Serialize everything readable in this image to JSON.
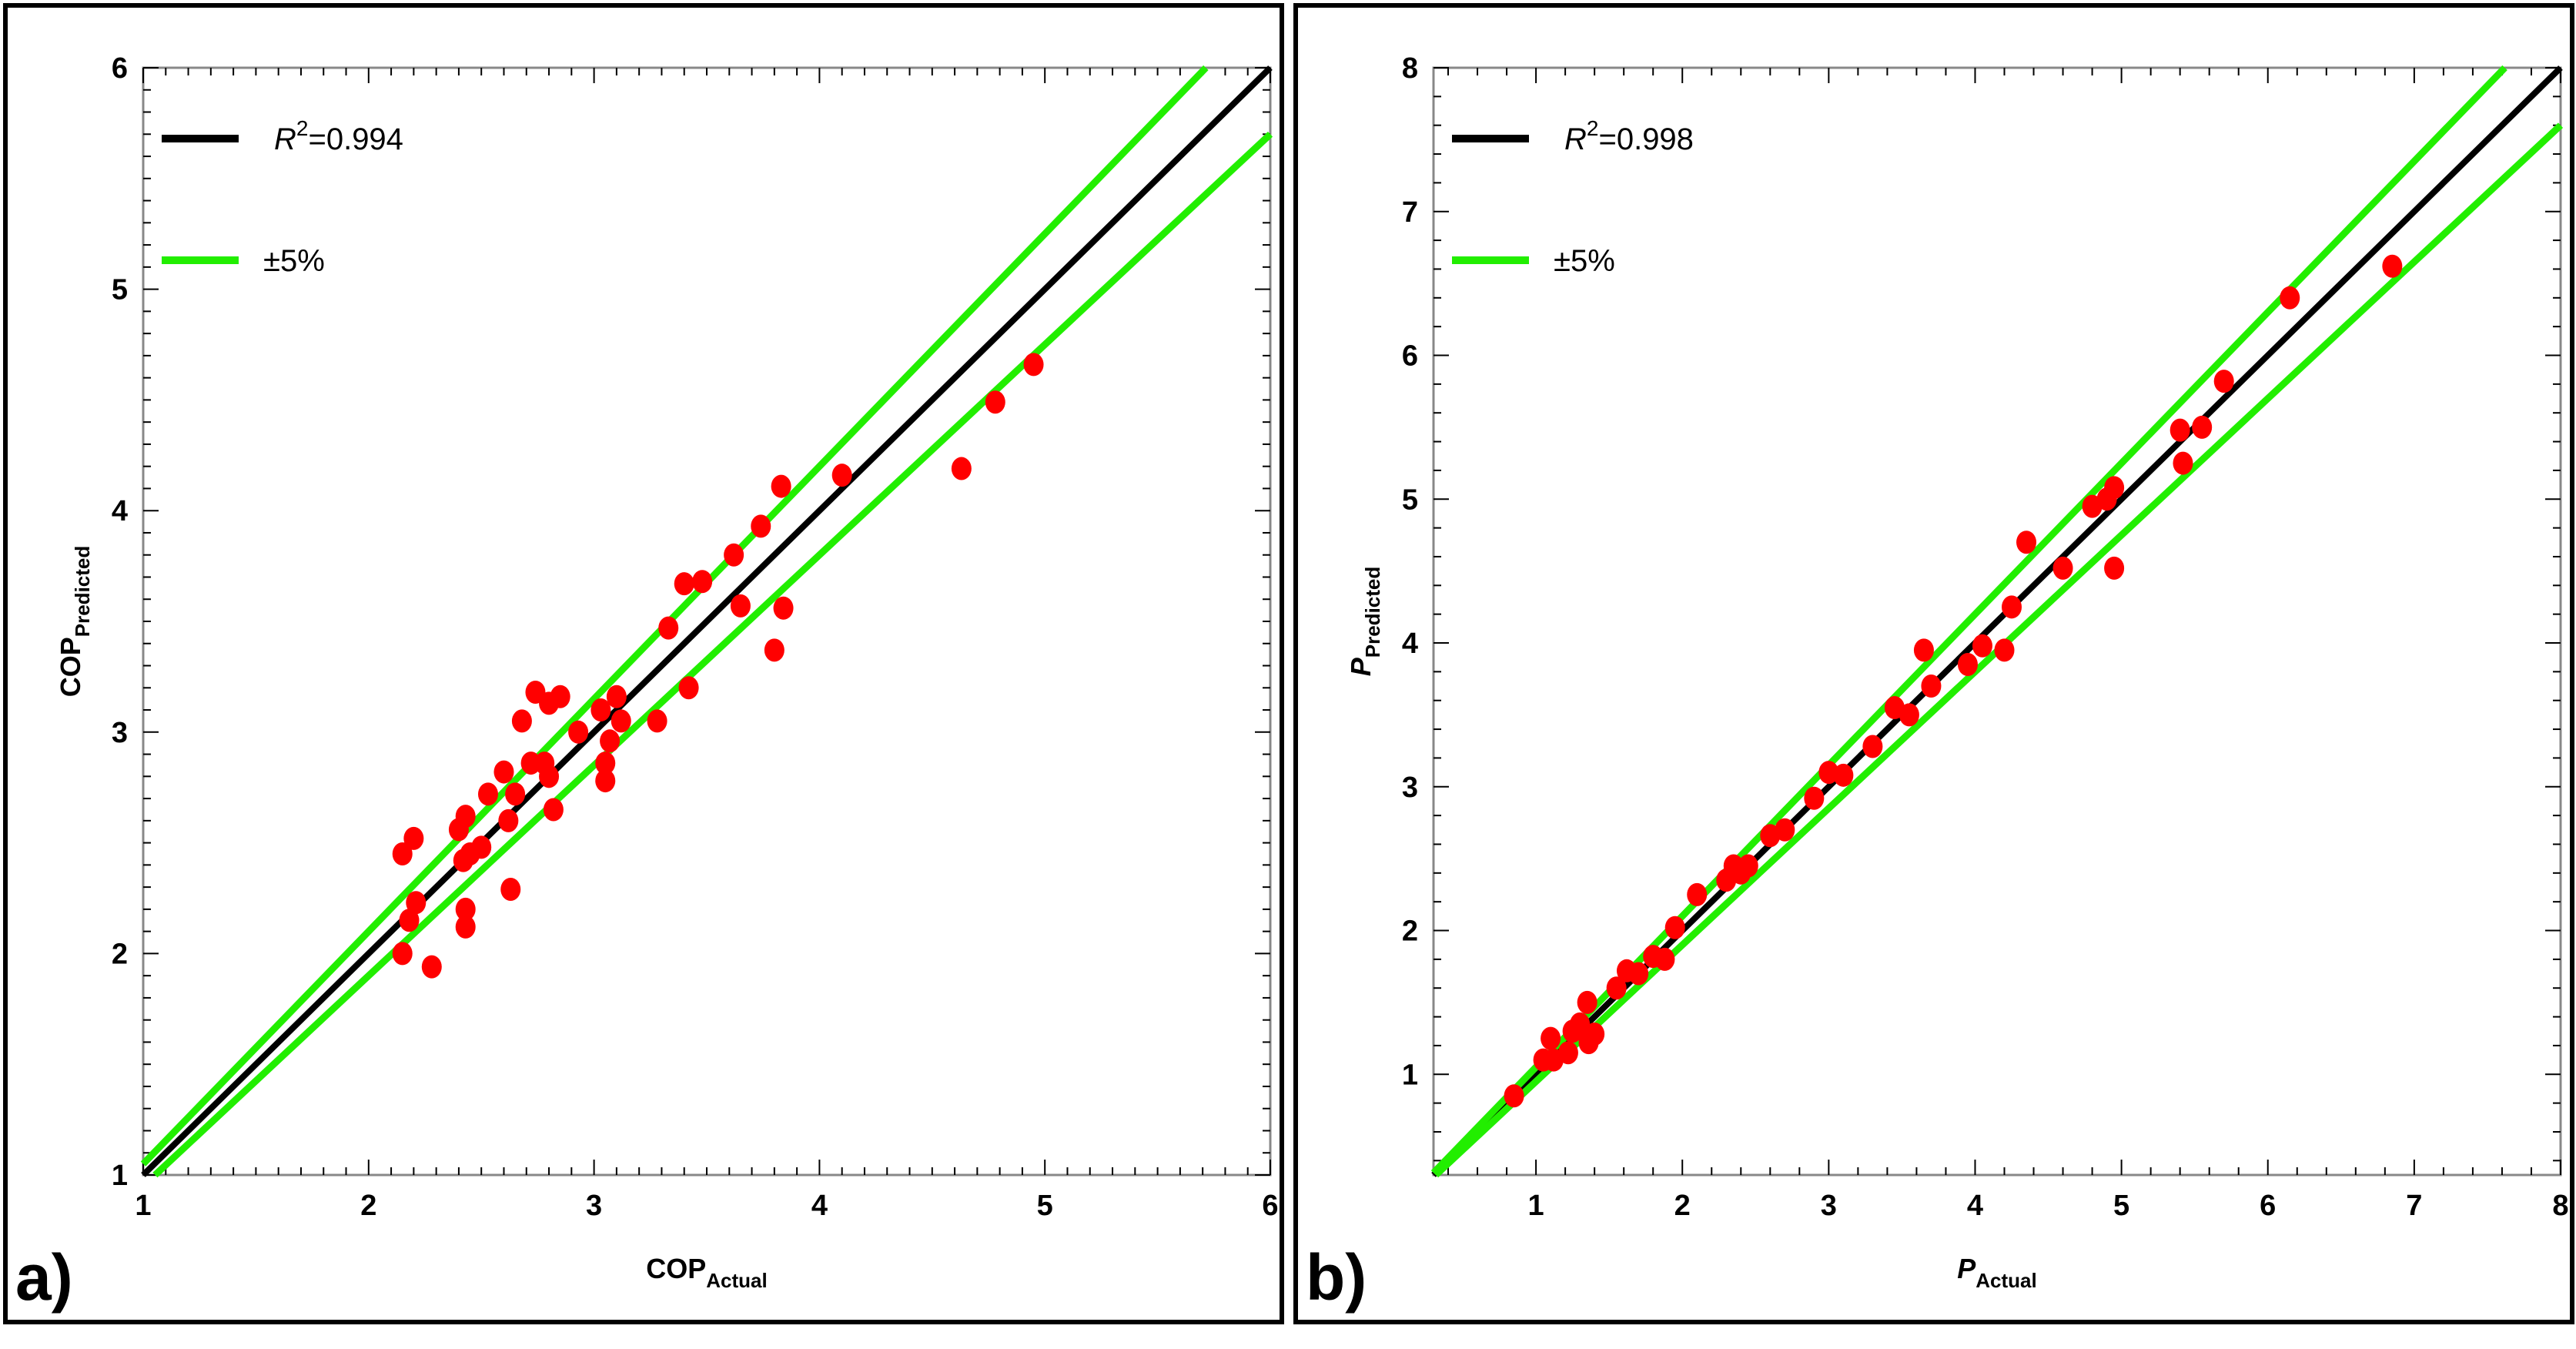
{
  "chart_data": [
    {
      "id": "a",
      "type": "scatter",
      "panel_label": "a)",
      "xlabel_main": "COP",
      "xlabel_sub": "Actual",
      "ylabel_main": "COP",
      "ylabel_sub": "Predicted",
      "xlim": [
        1,
        6
      ],
      "ylim": [
        1,
        6
      ],
      "xticks": [
        1,
        2,
        3,
        4,
        5,
        6
      ],
      "yticks": [
        1,
        2,
        3,
        4,
        5,
        6
      ],
      "legend": [
        {
          "label_main": "R",
          "label_sup": "2",
          "label_rest": "=0.994",
          "color": "#000000"
        },
        {
          "label_main": "±5%",
          "label_sup": "",
          "label_rest": "",
          "color": "#22ee00"
        }
      ],
      "lines": [
        {
          "name": "ideal",
          "slope": 1.0,
          "color": "#000000"
        },
        {
          "name": "plus-5pct",
          "slope": 1.05,
          "color": "#22ee00"
        },
        {
          "name": "minus-5pct",
          "slope": 0.95,
          "color": "#22ee00"
        }
      ],
      "point_color": "#ff0000",
      "points": [
        [
          2.15,
          2.45
        ],
        [
          2.18,
          2.15
        ],
        [
          2.2,
          2.52
        ],
        [
          2.21,
          2.23
        ],
        [
          2.15,
          2.0
        ],
        [
          2.28,
          1.94
        ],
        [
          2.4,
          2.56
        ],
        [
          2.42,
          2.42
        ],
        [
          2.43,
          2.62
        ],
        [
          2.43,
          2.2
        ],
        [
          2.43,
          2.12
        ],
        [
          2.45,
          2.45
        ],
        [
          2.5,
          2.48
        ],
        [
          2.53,
          2.72
        ],
        [
          2.6,
          2.82
        ],
        [
          2.62,
          2.6
        ],
        [
          2.63,
          2.29
        ],
        [
          2.65,
          2.72
        ],
        [
          2.68,
          3.05
        ],
        [
          2.72,
          2.86
        ],
        [
          2.74,
          3.18
        ],
        [
          2.78,
          2.86
        ],
        [
          2.8,
          2.8
        ],
        [
          2.8,
          3.13
        ],
        [
          2.82,
          2.65
        ],
        [
          2.85,
          3.16
        ],
        [
          2.93,
          3.0
        ],
        [
          3.03,
          3.1
        ],
        [
          3.05,
          2.86
        ],
        [
          3.05,
          2.78
        ],
        [
          3.07,
          2.96
        ],
        [
          3.1,
          3.16
        ],
        [
          3.12,
          3.05
        ],
        [
          3.28,
          3.05
        ],
        [
          3.33,
          3.47
        ],
        [
          3.4,
          3.67
        ],
        [
          3.42,
          3.2
        ],
        [
          3.48,
          3.68
        ],
        [
          3.62,
          3.8
        ],
        [
          3.65,
          3.57
        ],
        [
          3.74,
          3.93
        ],
        [
          3.8,
          3.37
        ],
        [
          3.83,
          4.11
        ],
        [
          3.84,
          3.56
        ],
        [
          4.1,
          4.16
        ],
        [
          4.63,
          4.19
        ],
        [
          4.78,
          4.49
        ],
        [
          4.95,
          4.66
        ]
      ]
    },
    {
      "id": "b",
      "type": "scatter",
      "panel_label": "b)",
      "xlabel_main": "P",
      "xlabel_sub": "Actual",
      "ylabel_main": "P",
      "ylabel_sub": "Predicted",
      "xlim": [
        0.3,
        8
      ],
      "ylim": [
        0.3,
        8
      ],
      "xticks": [
        1,
        2,
        3,
        4,
        5,
        6,
        7,
        8
      ],
      "yticks": [
        1,
        2,
        3,
        4,
        5,
        6,
        7,
        8
      ],
      "legend": [
        {
          "label_main": "R",
          "label_sup": "2",
          "label_rest": "=0.998",
          "color": "#000000"
        },
        {
          "label_main": "±5%",
          "label_sup": "",
          "label_rest": "",
          "color": "#22ee00"
        }
      ],
      "lines": [
        {
          "name": "ideal",
          "slope": 1.0,
          "color": "#000000"
        },
        {
          "name": "plus-5pct",
          "slope": 1.05,
          "color": "#22ee00"
        },
        {
          "name": "minus-5pct",
          "slope": 0.95,
          "color": "#22ee00"
        }
      ],
      "point_color": "#ff0000",
      "points": [
        [
          0.85,
          0.85
        ],
        [
          1.05,
          1.1
        ],
        [
          1.1,
          1.25
        ],
        [
          1.12,
          1.1
        ],
        [
          1.22,
          1.15
        ],
        [
          1.25,
          1.3
        ],
        [
          1.3,
          1.35
        ],
        [
          1.35,
          1.5
        ],
        [
          1.36,
          1.22
        ],
        [
          1.4,
          1.28
        ],
        [
          1.55,
          1.6
        ],
        [
          1.62,
          1.72
        ],
        [
          1.7,
          1.7
        ],
        [
          1.8,
          1.82
        ],
        [
          1.88,
          1.8
        ],
        [
          1.95,
          2.02
        ],
        [
          2.1,
          2.25
        ],
        [
          2.3,
          2.35
        ],
        [
          2.35,
          2.45
        ],
        [
          2.4,
          2.4
        ],
        [
          2.45,
          2.45
        ],
        [
          2.6,
          2.66
        ],
        [
          2.7,
          2.7
        ],
        [
          2.9,
          2.92
        ],
        [
          3.0,
          3.1
        ],
        [
          3.1,
          3.08
        ],
        [
          3.3,
          3.28
        ],
        [
          3.45,
          3.55
        ],
        [
          3.55,
          3.5
        ],
        [
          3.65,
          3.95
        ],
        [
          3.7,
          3.7
        ],
        [
          3.95,
          3.85
        ],
        [
          4.05,
          3.98
        ],
        [
          4.2,
          3.95
        ],
        [
          4.25,
          4.25
        ],
        [
          4.35,
          4.7
        ],
        [
          4.6,
          4.52
        ],
        [
          4.8,
          4.95
        ],
        [
          4.9,
          5.0
        ],
        [
          4.95,
          4.52
        ],
        [
          4.95,
          5.08
        ],
        [
          5.4,
          5.48
        ],
        [
          5.42,
          5.25
        ],
        [
          5.55,
          5.5
        ],
        [
          5.7,
          5.82
        ],
        [
          6.15,
          6.4
        ],
        [
          6.85,
          6.62
        ]
      ]
    }
  ]
}
